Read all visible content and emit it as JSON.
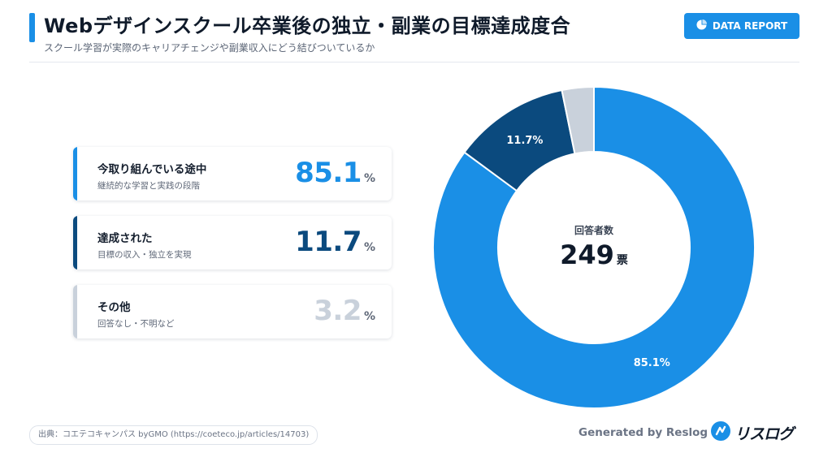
{
  "header": {
    "title": "Webデザインスクール卒業後の独立・副業の目標達成度合",
    "subtitle": "スクール学習が実際のキャリアチェンジや副業収入にどう結びついているか",
    "badge_label": "DATA REPORT"
  },
  "cards": [
    {
      "label": "今取り組んでいる途中",
      "desc": "継続的な学習と実践の段階",
      "value": "85.1",
      "unit": "%",
      "color": "#1a8fe6"
    },
    {
      "label": "達成された",
      "desc": "目標の収入・独立を実現",
      "value": "11.7",
      "unit": "%",
      "color": "#0b4a7e"
    },
    {
      "label": "その他",
      "desc": "回答なし・不明など",
      "value": "3.2",
      "unit": "%",
      "color": "#c9d1db"
    }
  ],
  "center": {
    "label": "回答者数",
    "value": "249",
    "unit": "票"
  },
  "chart_data": {
    "type": "pie",
    "title": "Webデザインスクール卒業後の独立・副業の目標達成度合",
    "total_respondents": 249,
    "slices": [
      {
        "name": "今取り組んでいる途中",
        "value": 85.1,
        "label": "85.1%",
        "color": "#1a8fe6"
      },
      {
        "name": "達成された",
        "value": 11.7,
        "label": "11.7%",
        "color": "#0b4a7e"
      },
      {
        "name": "その他",
        "value": 3.2,
        "label": "",
        "color": "#c9d1db"
      }
    ]
  },
  "footer": {
    "source": "出典：コエテコキャンパス byGMO (https://coeteco.jp/articles/14703)",
    "generated": "Generated by Reslog",
    "logo_text": "リスログ"
  }
}
